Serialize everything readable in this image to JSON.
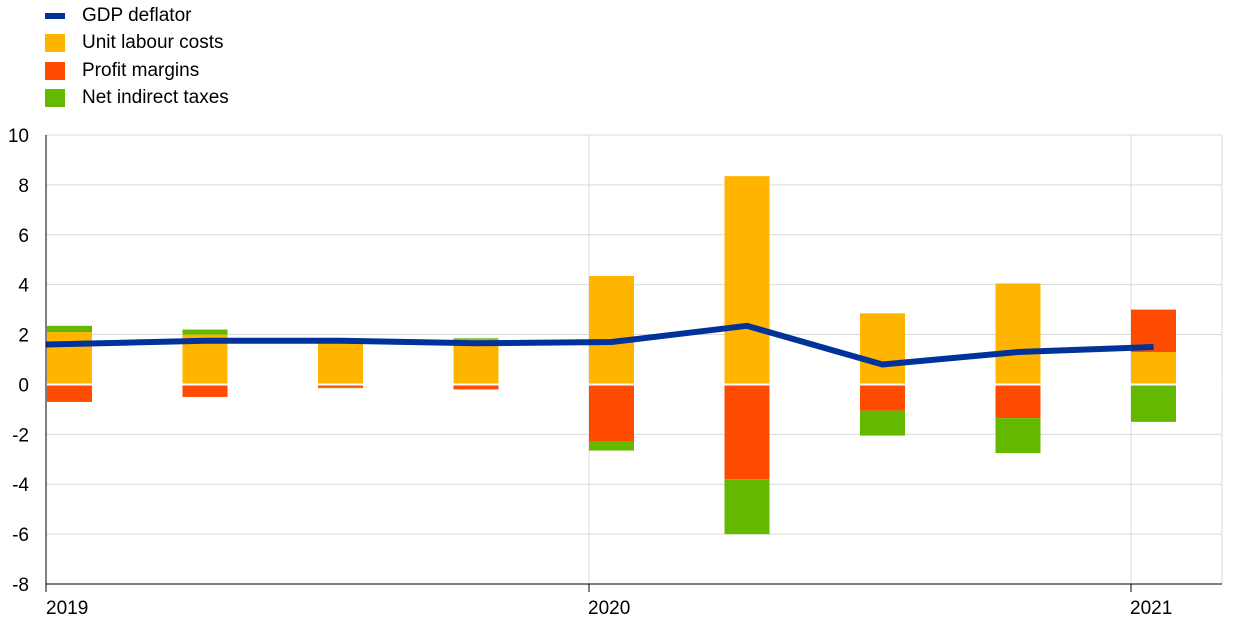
{
  "chart_data": {
    "type": "bar",
    "stacked": true,
    "x_tick_labels": [
      "2019",
      "2020",
      "2021"
    ],
    "periods": [
      "2019 Q1",
      "2019 Q2",
      "2019 Q3",
      "2019 Q4",
      "2020 Q1",
      "2020 Q2",
      "2020 Q3",
      "2020 Q4",
      "2021 Q1"
    ],
    "ylim": [
      -8,
      10
    ],
    "yticks": [
      10,
      8,
      6,
      4,
      2,
      0,
      -2,
      -4,
      -6,
      -8
    ],
    "grid": true,
    "legend_position": "top-left",
    "series": [
      {
        "name": "Unit labour costs",
        "type": "bar",
        "color": "#FFB400",
        "values": [
          2.1,
          2.0,
          1.8,
          1.8,
          4.35,
          8.35,
          2.85,
          4.05,
          1.3
        ]
      },
      {
        "name": "Profit margins",
        "type": "bar",
        "color": "#FF4B00",
        "values": [
          -0.7,
          -0.5,
          -0.1,
          -0.2,
          -2.3,
          -3.8,
          -1.05,
          -1.35,
          1.7
        ]
      },
      {
        "name": "Net indirect taxes",
        "type": "bar",
        "color": "#65B800",
        "values": [
          0.25,
          0.2,
          -0.05,
          0.05,
          -0.35,
          -2.2,
          -1.0,
          -1.4,
          -1.5
        ]
      },
      {
        "name": "GDP deflator",
        "type": "line",
        "color": "#003299",
        "values": [
          1.6,
          1.75,
          1.75,
          1.65,
          1.7,
          2.35,
          0.8,
          1.3,
          1.5
        ]
      }
    ]
  },
  "legend": {
    "items": [
      {
        "label": "GDP deflator",
        "color": "#003299",
        "kind": "line"
      },
      {
        "label": "Unit labour costs",
        "color": "#FFB400",
        "kind": "box"
      },
      {
        "label": "Profit margins",
        "color": "#FF4B00",
        "kind": "box"
      },
      {
        "label": "Net indirect taxes",
        "color": "#65B800",
        "kind": "box"
      }
    ]
  },
  "colors": {
    "grid": "#D9D9D9",
    "axis": "#000000",
    "zero_line": "#FFFFFF"
  }
}
